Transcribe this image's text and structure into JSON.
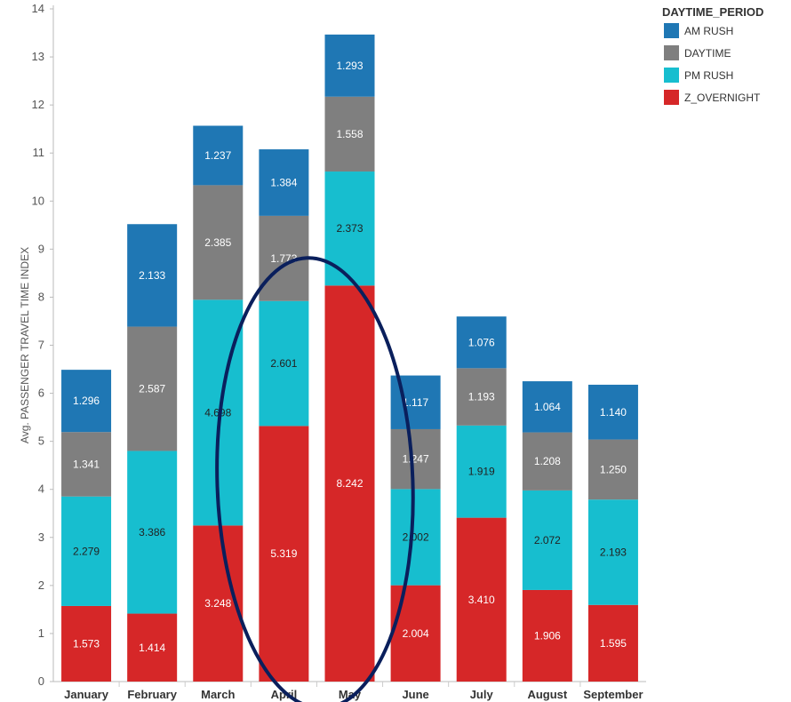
{
  "chart_data": {
    "type": "bar",
    "stacked": true,
    "categories": [
      "January",
      "February",
      "March",
      "April",
      "May",
      "June",
      "July",
      "August",
      "September"
    ],
    "series": [
      {
        "name": "Z_OVERNIGHT",
        "color": "#d62728",
        "labelColor": "#ffffff",
        "values": [
          1.573,
          1.414,
          3.248,
          5.319,
          8.242,
          2.004,
          3.41,
          1.906,
          1.595
        ]
      },
      {
        "name": "PM RUSH",
        "color": "#17becf",
        "labelColor": "#222222",
        "values": [
          2.279,
          3.386,
          4.698,
          2.601,
          2.373,
          2.002,
          1.919,
          2.072,
          2.193
        ]
      },
      {
        "name": "DAYTIME",
        "color": "#7f7f7f",
        "labelColor": "#ffffff",
        "values": [
          1.341,
          2.587,
          2.385,
          1.773,
          1.558,
          1.247,
          1.193,
          1.208,
          1.25
        ]
      },
      {
        "name": "AM RUSH",
        "color": "#1f77b4",
        "labelColor": "#ffffff",
        "values": [
          1.296,
          2.133,
          1.237,
          1.384,
          1.293,
          1.117,
          1.076,
          1.064,
          1.14
        ]
      }
    ],
    "legend_order": [
      "AM RUSH",
      "DAYTIME",
      "PM RUSH",
      "Z_OVERNIGHT"
    ],
    "legend_title": "DAYTIME_PERIOD",
    "legend_position": "right",
    "ylabel": "Avg. PASSENGER TRAVEL TIME INDEX",
    "ylim": [
      0,
      14
    ],
    "yticks": [
      0,
      1,
      2,
      3,
      4,
      5,
      6,
      7,
      8,
      9,
      10,
      11,
      12,
      13,
      14
    ],
    "grid": false,
    "annotation": "dark navy ellipse drawn around the April and May bars",
    "annotation_color": "#0a1f5c"
  }
}
